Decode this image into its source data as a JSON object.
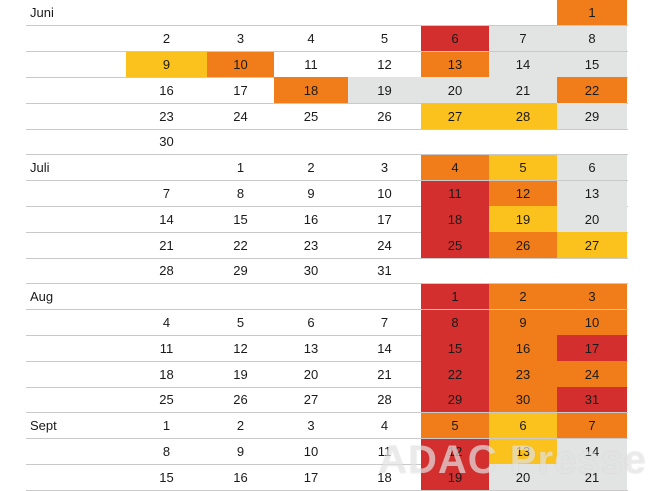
{
  "colors": {
    "red": "#d42f2f",
    "orange": "#f07d1a",
    "yellow": "#fbc21e",
    "grey": "#e2e3e3",
    "line": "#c9c9c9"
  },
  "months": [
    {
      "label": "Juni",
      "rows": [
        [
          null,
          null,
          null,
          null,
          null,
          null,
          {
            "d": "1",
            "c": "orange"
          }
        ],
        [
          {
            "d": "2"
          },
          {
            "d": "3"
          },
          {
            "d": "4"
          },
          {
            "d": "5"
          },
          {
            "d": "6",
            "c": "red"
          },
          {
            "d": "7",
            "c": "grey"
          },
          {
            "d": "8",
            "c": "grey"
          }
        ],
        [
          {
            "d": "9",
            "c": "yellow"
          },
          {
            "d": "10",
            "c": "orange"
          },
          {
            "d": "11"
          },
          {
            "d": "12"
          },
          {
            "d": "13",
            "c": "orange"
          },
          {
            "d": "14",
            "c": "grey"
          },
          {
            "d": "15",
            "c": "grey"
          }
        ],
        [
          {
            "d": "16"
          },
          {
            "d": "17"
          },
          {
            "d": "18",
            "c": "orange"
          },
          {
            "d": "19",
            "c": "grey"
          },
          {
            "d": "20",
            "c": "grey"
          },
          {
            "d": "21",
            "c": "grey"
          },
          {
            "d": "22",
            "c": "orange"
          }
        ],
        [
          {
            "d": "23"
          },
          {
            "d": "24"
          },
          {
            "d": "25"
          },
          {
            "d": "26"
          },
          {
            "d": "27",
            "c": "yellow"
          },
          {
            "d": "28",
            "c": "yellow"
          },
          {
            "d": "29",
            "c": "grey"
          }
        ],
        [
          {
            "d": "30"
          },
          null,
          null,
          null,
          null,
          null,
          null
        ]
      ]
    },
    {
      "label": "Juli",
      "rows": [
        [
          null,
          {
            "d": "1"
          },
          {
            "d": "2"
          },
          {
            "d": "3"
          },
          {
            "d": "4",
            "c": "orange"
          },
          {
            "d": "5",
            "c": "yellow"
          },
          {
            "d": "6",
            "c": "grey"
          }
        ],
        [
          {
            "d": "7"
          },
          {
            "d": "8"
          },
          {
            "d": "9"
          },
          {
            "d": "10"
          },
          {
            "d": "11",
            "c": "red"
          },
          {
            "d": "12",
            "c": "orange"
          },
          {
            "d": "13",
            "c": "grey"
          }
        ],
        [
          {
            "d": "14"
          },
          {
            "d": "15"
          },
          {
            "d": "16"
          },
          {
            "d": "17"
          },
          {
            "d": "18",
            "c": "red"
          },
          {
            "d": "19",
            "c": "yellow"
          },
          {
            "d": "20",
            "c": "grey"
          }
        ],
        [
          {
            "d": "21"
          },
          {
            "d": "22"
          },
          {
            "d": "23"
          },
          {
            "d": "24"
          },
          {
            "d": "25",
            "c": "red"
          },
          {
            "d": "26",
            "c": "orange"
          },
          {
            "d": "27",
            "c": "yellow"
          }
        ],
        [
          {
            "d": "28"
          },
          {
            "d": "29"
          },
          {
            "d": "30"
          },
          {
            "d": "31"
          },
          null,
          null,
          null
        ]
      ]
    },
    {
      "label": "Aug",
      "rows": [
        [
          null,
          null,
          null,
          null,
          {
            "d": "1",
            "c": "red"
          },
          {
            "d": "2",
            "c": "orange"
          },
          {
            "d": "3",
            "c": "orange"
          }
        ],
        [
          {
            "d": "4"
          },
          {
            "d": "5"
          },
          {
            "d": "6"
          },
          {
            "d": "7"
          },
          {
            "d": "8",
            "c": "red"
          },
          {
            "d": "9",
            "c": "orange"
          },
          {
            "d": "10",
            "c": "orange"
          }
        ],
        [
          {
            "d": "11"
          },
          {
            "d": "12"
          },
          {
            "d": "13"
          },
          {
            "d": "14"
          },
          {
            "d": "15",
            "c": "red"
          },
          {
            "d": "16",
            "c": "orange"
          },
          {
            "d": "17",
            "c": "red"
          }
        ],
        [
          {
            "d": "18"
          },
          {
            "d": "19"
          },
          {
            "d": "20"
          },
          {
            "d": "21"
          },
          {
            "d": "22",
            "c": "red"
          },
          {
            "d": "23",
            "c": "orange"
          },
          {
            "d": "24",
            "c": "orange"
          }
        ],
        [
          {
            "d": "25"
          },
          {
            "d": "26"
          },
          {
            "d": "27"
          },
          {
            "d": "28"
          },
          {
            "d": "29",
            "c": "red"
          },
          {
            "d": "30",
            "c": "orange"
          },
          {
            "d": "31",
            "c": "red"
          }
        ]
      ]
    },
    {
      "label": "Sept",
      "rows": [
        [
          {
            "d": "1"
          },
          {
            "d": "2"
          },
          {
            "d": "3"
          },
          {
            "d": "4"
          },
          {
            "d": "5",
            "c": "orange"
          },
          {
            "d": "6",
            "c": "yellow"
          },
          {
            "d": "7",
            "c": "orange"
          }
        ],
        [
          {
            "d": "8"
          },
          {
            "d": "9"
          },
          {
            "d": "10"
          },
          {
            "d": "11"
          },
          {
            "d": "12",
            "c": "red"
          },
          {
            "d": "13",
            "c": "yellow"
          },
          {
            "d": "14",
            "c": "grey"
          }
        ],
        [
          {
            "d": "15"
          },
          {
            "d": "16"
          },
          {
            "d": "17"
          },
          {
            "d": "18"
          },
          {
            "d": "19",
            "c": "red"
          },
          {
            "d": "20",
            "c": "grey"
          },
          {
            "d": "21",
            "c": "grey"
          }
        ]
      ]
    }
  ],
  "watermark": "ADAC Presse"
}
